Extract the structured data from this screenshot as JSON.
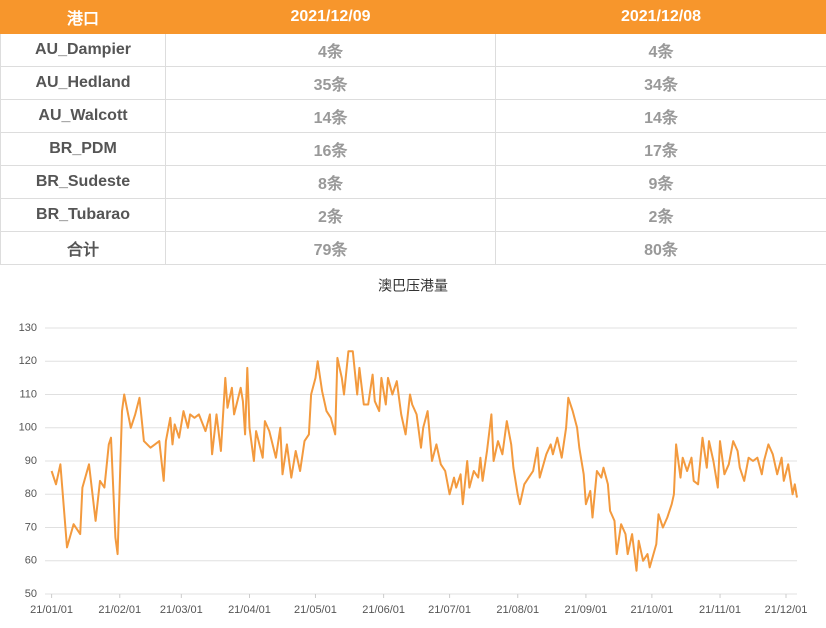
{
  "table": {
    "header": [
      "港口",
      "2021/12/09",
      "2021/12/08"
    ],
    "rows": [
      [
        "AU_Dampier",
        "4条",
        "4条"
      ],
      [
        "AU_Hedland",
        "35条",
        "34条"
      ],
      [
        "AU_Walcott",
        "14条",
        "14条"
      ],
      [
        "BR_PDM",
        "16条",
        "17条"
      ],
      [
        "BR_Sudeste",
        "8条",
        "9条"
      ],
      [
        "BR_Tubarao",
        "2条",
        "2条"
      ],
      [
        "合计",
        "79条",
        "80条"
      ]
    ]
  },
  "chart_data": {
    "type": "line",
    "title": "澳巴压港量",
    "color": "#f39a3e",
    "grid": true,
    "ylim": [
      50,
      130
    ],
    "yticks": [
      50,
      60,
      70,
      80,
      90,
      100,
      110,
      120,
      130
    ],
    "xlim": [
      -3,
      339
    ],
    "xticks": [
      {
        "value": 0,
        "label": "21/01/01"
      },
      {
        "value": 31,
        "label": "21/02/01"
      },
      {
        "value": 59,
        "label": "21/03/01"
      },
      {
        "value": 90,
        "label": "21/04/01"
      },
      {
        "value": 120,
        "label": "21/05/01"
      },
      {
        "value": 151,
        "label": "21/06/01"
      },
      {
        "value": 181,
        "label": "21/07/01"
      },
      {
        "value": 212,
        "label": "21/08/01"
      },
      {
        "value": 243,
        "label": "21/09/01"
      },
      {
        "value": 273,
        "label": "21/10/01"
      },
      {
        "value": 304,
        "label": "21/11/01"
      },
      {
        "value": 334,
        "label": "21/12/01"
      }
    ],
    "x": [
      0,
      2,
      4,
      7,
      10,
      13,
      14,
      17,
      20,
      22,
      24,
      26,
      27,
      29,
      30,
      32,
      33,
      36,
      38,
      40,
      42,
      45,
      47,
      49,
      51,
      52,
      54,
      55,
      56,
      58,
      60,
      62,
      63,
      65,
      67,
      70,
      72,
      73,
      75,
      77,
      79,
      80,
      82,
      83,
      86,
      87,
      88,
      89,
      90,
      92,
      93,
      96,
      97,
      99,
      102,
      104,
      105,
      107,
      109,
      111,
      113,
      115,
      117,
      118,
      120,
      121,
      123,
      125,
      127,
      129,
      130,
      132,
      133,
      135,
      137,
      139,
      140,
      142,
      144,
      146,
      147,
      149,
      150,
      152,
      153,
      155,
      157,
      159,
      161,
      163,
      164,
      166,
      168,
      169,
      171,
      173,
      175,
      177,
      179,
      181,
      183,
      184,
      186,
      187,
      189,
      190,
      192,
      194,
      195,
      196,
      198,
      200,
      201,
      203,
      205,
      207,
      209,
      210,
      212,
      213,
      215,
      217,
      219,
      221,
      222,
      225,
      227,
      228,
      230,
      232,
      234,
      235,
      237,
      239,
      240,
      242,
      243,
      245,
      246,
      248,
      250,
      251,
      253,
      254,
      256,
      257,
      259,
      261,
      262,
      264,
      266,
      267,
      269,
      271,
      272,
      275,
      276,
      278,
      280,
      282,
      283,
      284,
      286,
      287,
      289,
      291,
      292,
      294,
      296,
      298,
      299,
      301,
      303,
      304,
      306,
      308,
      310,
      312,
      313,
      315,
      317,
      319,
      321,
      323,
      324,
      326,
      328,
      330,
      332,
      333,
      335,
      337,
      338,
      339
    ],
    "values": [
      87,
      83,
      89,
      64,
      71,
      68,
      82,
      89,
      72,
      84,
      82,
      95,
      97,
      67,
      62,
      105,
      110,
      100,
      104,
      109,
      96,
      94,
      95,
      96,
      84,
      96,
      103,
      95,
      101,
      97,
      105,
      100,
      104,
      103,
      104,
      99,
      104,
      92,
      104,
      93,
      115,
      106,
      112,
      104,
      112,
      108,
      98,
      118,
      100,
      90,
      99,
      91,
      102,
      99,
      91,
      100,
      86,
      95,
      85,
      93,
      87,
      96,
      98,
      110,
      115,
      120,
      111,
      105,
      103,
      98,
      121,
      115,
      110,
      123,
      123,
      110,
      118,
      107,
      107,
      116,
      108,
      105,
      115,
      107,
      115,
      110,
      114,
      104,
      98,
      110,
      107,
      104,
      94,
      100,
      105,
      90,
      95,
      89,
      87,
      80,
      85,
      82,
      86,
      77,
      90,
      82,
      87,
      85,
      91,
      84,
      93,
      104,
      90,
      96,
      92,
      102,
      95,
      88,
      80,
      77,
      83,
      85,
      87,
      94,
      85,
      92,
      95,
      92,
      97,
      91,
      100,
      109,
      105,
      100,
      94,
      86,
      77,
      81,
      73,
      87,
      85,
      88,
      83,
      75,
      72,
      62,
      71,
      68,
      62,
      68,
      57,
      66,
      60,
      62,
      58,
      65,
      74,
      70,
      73,
      77,
      80,
      95,
      85,
      91,
      87,
      91,
      84,
      83,
      97,
      88,
      96,
      90,
      82,
      96,
      86,
      89,
      96,
      93,
      88,
      84,
      91,
      90,
      91,
      86,
      90,
      95,
      92,
      86,
      91,
      84,
      89,
      80,
      83,
      79
    ]
  }
}
